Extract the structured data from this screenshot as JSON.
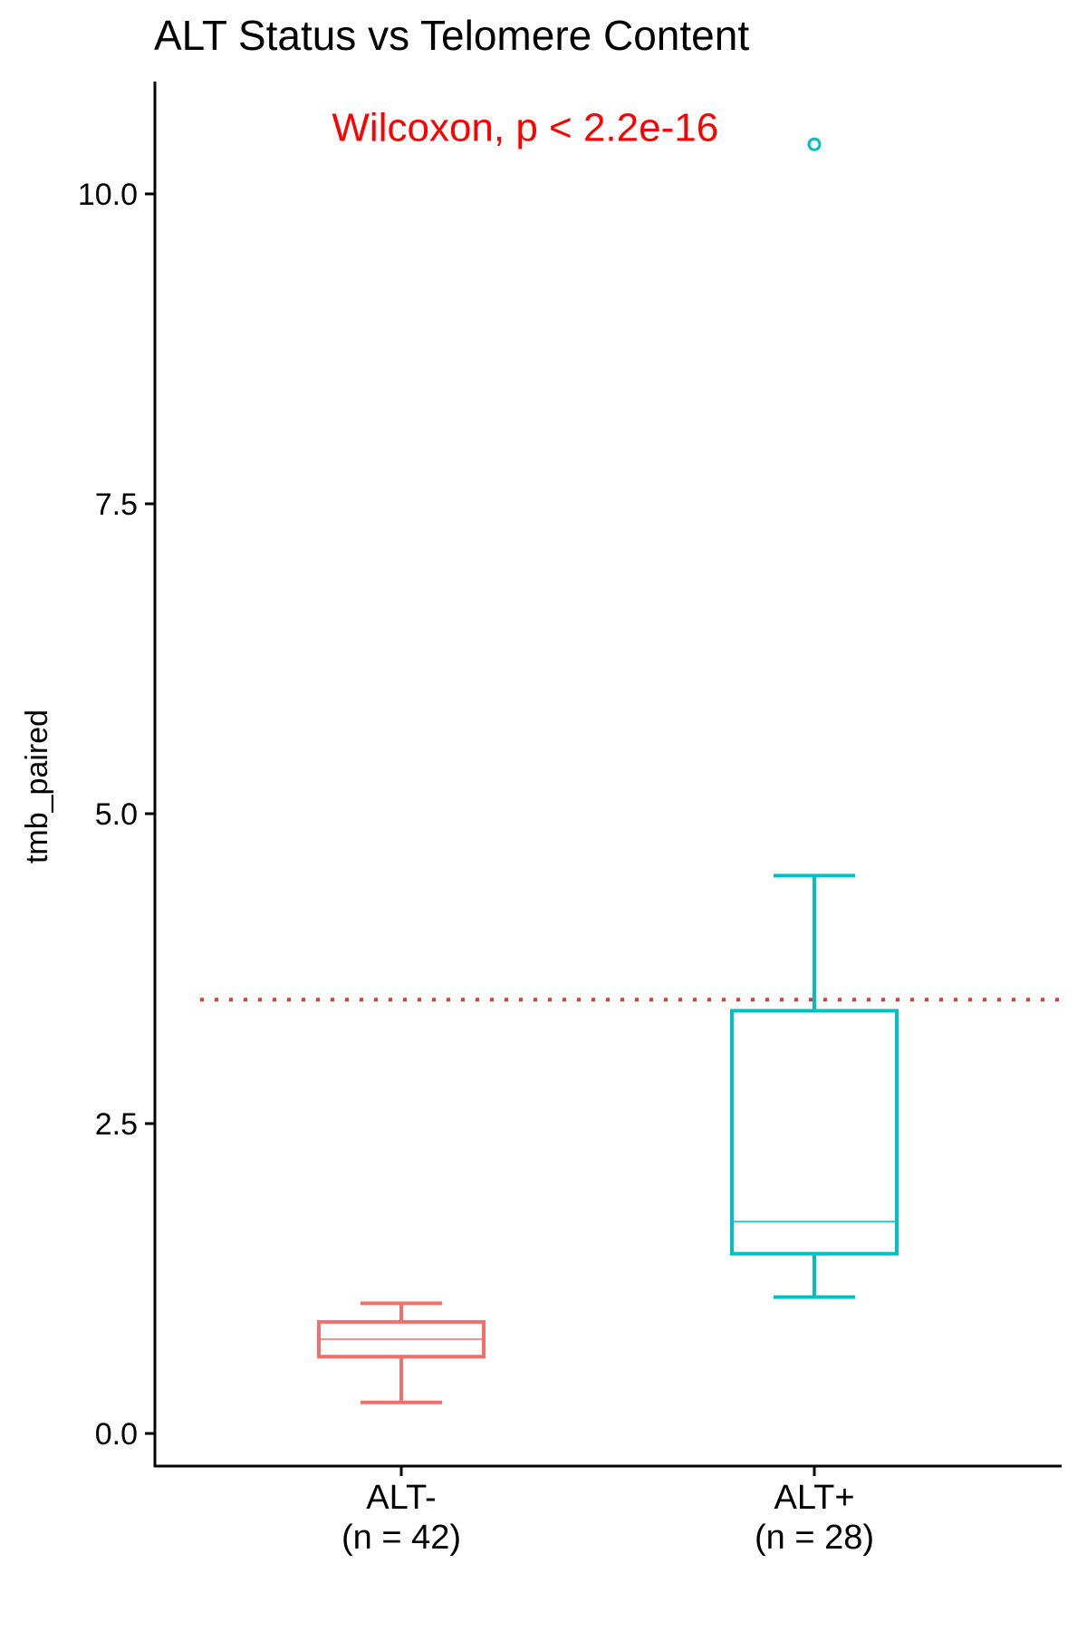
{
  "chart_data": {
    "type": "box",
    "title": "ALT Status vs Telomere Content",
    "ylabel": "tmb_paired",
    "xlabel": "",
    "ylim": [
      -0.2,
      10.9
    ],
    "yticks": [
      {
        "value": 0.0,
        "label": "0.0"
      },
      {
        "value": 2.5,
        "label": "2.5"
      },
      {
        "value": 5.0,
        "label": "5.0"
      },
      {
        "value": 7.5,
        "label": "7.5"
      },
      {
        "value": 10.0,
        "label": "10.0"
      }
    ],
    "grid": false,
    "legend": "none",
    "reference_line": {
      "y": 3.5,
      "color": "#e8312a",
      "style": "dotted"
    },
    "annotation": {
      "text": "Wilcoxon, p < 2.2e-16",
      "color": "#ff0000",
      "x_anchor": 1.3,
      "y": 10.5
    },
    "groups": [
      {
        "name": "ALT-",
        "count_label": "(n = 42)",
        "color": "#f26f6b",
        "whisker_low": 0.25,
        "q1": 0.62,
        "median": 0.76,
        "q3": 0.9,
        "whisker_high": 1.05,
        "outliers": []
      },
      {
        "name": "ALT+",
        "count_label": "(n = 28)",
        "color": "#00bfc4",
        "whisker_low": 1.1,
        "q1": 1.45,
        "median": 1.71,
        "q3": 3.41,
        "whisker_high": 4.5,
        "outliers": [
          10.4
        ]
      }
    ]
  }
}
